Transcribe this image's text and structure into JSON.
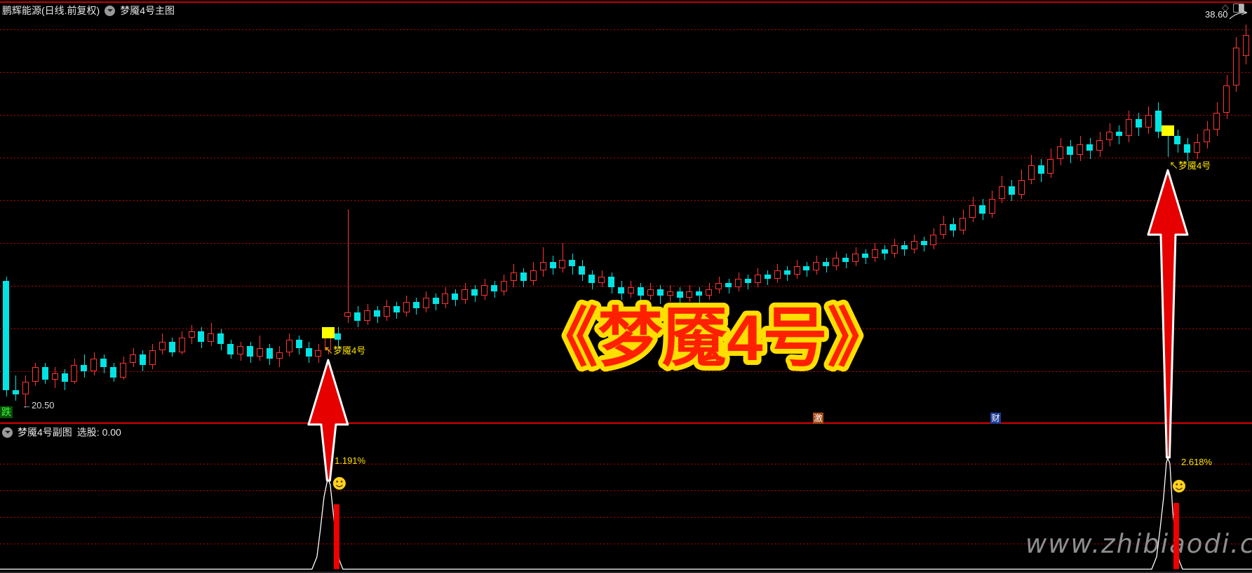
{
  "header": {
    "stock_title": "鹏辉能源(日线.前复权)",
    "main_indicator": "梦魇4号主图",
    "diamond_icon": "◇",
    "price_high_label": "38.60"
  },
  "main_chart": {
    "fall_tag": "跌",
    "low_label": "←20.50",
    "signal_text": "↖梦魇4号",
    "big_title": "《梦魇4号》",
    "news_tags": [
      {
        "text": "激",
        "bg": "#a84a16"
      },
      {
        "text": "财",
        "bg": "#1e3c96"
      }
    ]
  },
  "sub_chart": {
    "indicator_name": "梦魇4号副图",
    "field_label": "选股: 0.00",
    "signal_pcts": [
      "1.191%",
      "2.618%"
    ]
  },
  "watermark": "www.zhibiaodi.com",
  "colors": {
    "up_candle": "#ff3434",
    "down_candle": "#00e4e4",
    "grid": "#bd0000",
    "signal_yellow": "#ffff00",
    "arrow_fill": "#e60000",
    "arrow_stroke": "#ffffff",
    "indicator_line": "#ffffff",
    "histogram_bar": "#f00000",
    "smiley": "#ffd21e",
    "title_fill": "#ff2000",
    "title_stroke": "#ffdf00"
  },
  "chart_data": {
    "type": "candlestick",
    "title": "《梦魇4号》",
    "symbol": "鹏辉能源",
    "period": "日线 前复权",
    "y_axis_visible_labels": [
      "38.60",
      "20.50"
    ],
    "price_range": [
      20.5,
      38.6
    ],
    "grid": "dotted-red-horizontal",
    "candles_format": [
      "open",
      "close",
      "low",
      "high"
    ],
    "candles": [
      [
        26.4,
        21.2,
        20.9,
        26.6
      ],
      [
        21.2,
        21.0,
        20.7,
        21.9
      ],
      [
        21.0,
        21.6,
        20.5,
        21.9
      ],
      [
        21.6,
        22.3,
        21.4,
        22.5
      ],
      [
        22.3,
        21.7,
        21.5,
        22.5
      ],
      [
        21.7,
        22.0,
        21.3,
        22.3
      ],
      [
        22.0,
        21.6,
        21.2,
        22.2
      ],
      [
        21.6,
        22.4,
        21.5,
        22.7
      ],
      [
        22.4,
        22.1,
        21.8,
        22.9
      ],
      [
        22.1,
        22.7,
        21.9,
        23.0
      ],
      [
        22.7,
        22.3,
        22.0,
        22.9
      ],
      [
        22.3,
        21.8,
        21.6,
        22.5
      ],
      [
        21.8,
        22.5,
        21.7,
        22.8
      ],
      [
        22.5,
        22.9,
        22.3,
        23.2
      ],
      [
        22.9,
        22.4,
        22.1,
        23.1
      ],
      [
        22.4,
        23.1,
        22.2,
        23.4
      ],
      [
        23.1,
        23.5,
        22.9,
        23.9
      ],
      [
        23.5,
        23.0,
        22.8,
        23.7
      ],
      [
        23.0,
        23.7,
        22.9,
        24.0
      ],
      [
        23.7,
        24.0,
        23.4,
        24.3
      ],
      [
        24.0,
        23.5,
        23.2,
        24.2
      ],
      [
        23.5,
        23.9,
        23.3,
        24.4
      ],
      [
        23.9,
        23.4,
        23.1,
        24.1
      ],
      [
        23.4,
        22.9,
        22.7,
        23.6
      ],
      [
        22.9,
        23.3,
        22.6,
        23.5
      ],
      [
        23.3,
        22.8,
        22.5,
        23.5
      ],
      [
        22.8,
        23.2,
        22.6,
        23.8
      ],
      [
        23.2,
        22.7,
        22.4,
        23.4
      ],
      [
        22.7,
        23.0,
        22.3,
        23.3
      ],
      [
        23.0,
        23.6,
        22.8,
        23.9
      ],
      [
        23.6,
        23.2,
        22.9,
        23.8
      ],
      [
        23.2,
        22.8,
        22.5,
        23.5
      ],
      [
        22.8,
        23.1,
        22.5,
        23.4
      ],
      [
        23.1,
        23.9,
        22.9,
        24.1
      ],
      [
        23.9,
        23.6,
        23.2,
        24.2
      ],
      [
        24.7,
        24.9,
        24.4,
        29.8
      ],
      [
        24.9,
        24.5,
        24.2,
        25.2
      ],
      [
        24.5,
        25.0,
        24.3,
        25.3
      ],
      [
        25.0,
        24.7,
        24.4,
        25.2
      ],
      [
        24.7,
        25.2,
        24.5,
        25.5
      ],
      [
        25.2,
        24.9,
        24.6,
        25.4
      ],
      [
        24.9,
        25.4,
        24.7,
        25.7
      ],
      [
        25.4,
        25.1,
        24.8,
        25.6
      ],
      [
        25.1,
        25.6,
        24.9,
        25.9
      ],
      [
        25.6,
        25.3,
        25.0,
        25.8
      ],
      [
        25.3,
        25.8,
        25.1,
        26.1
      ],
      [
        25.8,
        25.5,
        25.2,
        26.0
      ],
      [
        25.5,
        26.0,
        25.3,
        26.3
      ],
      [
        26.0,
        25.7,
        25.4,
        26.2
      ],
      [
        25.7,
        26.2,
        25.5,
        26.5
      ],
      [
        26.2,
        25.9,
        25.6,
        26.4
      ],
      [
        25.9,
        26.4,
        25.7,
        26.7
      ],
      [
        26.4,
        26.8,
        26.1,
        27.2
      ],
      [
        26.8,
        26.4,
        26.1,
        27.0
      ],
      [
        26.4,
        26.9,
        26.2,
        27.3
      ],
      [
        26.9,
        27.3,
        26.6,
        28.0
      ],
      [
        27.3,
        27.0,
        26.7,
        27.6
      ],
      [
        27.0,
        27.4,
        26.8,
        28.2
      ],
      [
        27.4,
        27.1,
        26.7,
        27.7
      ],
      [
        27.1,
        26.7,
        26.4,
        27.4
      ],
      [
        26.7,
        26.3,
        26.0,
        26.9
      ],
      [
        26.3,
        26.6,
        26.1,
        26.9
      ],
      [
        26.6,
        26.1,
        25.8,
        26.8
      ],
      [
        26.1,
        25.8,
        25.5,
        26.4
      ],
      [
        25.8,
        26.1,
        25.6,
        26.4
      ],
      [
        26.1,
        25.7,
        25.4,
        26.3
      ],
      [
        25.7,
        26.0,
        25.5,
        26.3
      ],
      [
        26.0,
        25.7,
        25.3,
        26.2
      ],
      [
        25.7,
        25.9,
        25.4,
        26.2
      ],
      [
        25.9,
        25.6,
        25.2,
        26.1
      ],
      [
        25.6,
        25.9,
        25.4,
        26.2
      ],
      [
        25.9,
        25.7,
        25.3,
        26.1
      ],
      [
        25.7,
        26.0,
        25.5,
        26.3
      ],
      [
        26.0,
        26.3,
        25.8,
        26.6
      ],
      [
        26.3,
        26.1,
        25.8,
        26.5
      ],
      [
        26.1,
        26.5,
        25.9,
        26.8
      ],
      [
        26.5,
        26.3,
        26.0,
        26.7
      ],
      [
        26.3,
        26.7,
        26.1,
        27.0
      ],
      [
        26.7,
        26.5,
        26.2,
        26.9
      ],
      [
        26.5,
        26.9,
        26.3,
        27.2
      ],
      [
        26.9,
        26.7,
        26.4,
        27.1
      ],
      [
        26.7,
        27.1,
        26.5,
        27.4
      ],
      [
        27.1,
        26.9,
        26.6,
        27.3
      ],
      [
        26.9,
        27.3,
        26.7,
        27.6
      ],
      [
        27.3,
        27.1,
        26.8,
        27.5
      ],
      [
        27.1,
        27.5,
        26.9,
        27.8
      ],
      [
        27.5,
        27.3,
        27.0,
        27.7
      ],
      [
        27.3,
        27.7,
        27.1,
        28.0
      ],
      [
        27.7,
        27.5,
        27.2,
        27.9
      ],
      [
        27.5,
        27.9,
        27.3,
        28.2
      ],
      [
        27.9,
        27.7,
        27.4,
        28.1
      ],
      [
        27.7,
        28.1,
        27.5,
        28.4
      ],
      [
        28.1,
        27.9,
        27.6,
        28.3
      ],
      [
        27.9,
        28.3,
        27.7,
        28.6
      ],
      [
        28.3,
        28.1,
        27.8,
        28.5
      ],
      [
        28.1,
        28.6,
        27.9,
        28.9
      ],
      [
        28.6,
        29.1,
        28.4,
        29.5
      ],
      [
        29.1,
        28.8,
        28.5,
        29.4
      ],
      [
        28.8,
        29.4,
        28.6,
        29.8
      ],
      [
        29.4,
        30.0,
        29.2,
        30.4
      ],
      [
        30.0,
        29.6,
        29.3,
        30.3
      ],
      [
        29.6,
        30.3,
        29.4,
        30.7
      ],
      [
        30.3,
        30.9,
        30.1,
        31.4
      ],
      [
        30.9,
        30.5,
        30.2,
        31.2
      ],
      [
        30.5,
        31.2,
        30.3,
        31.7
      ],
      [
        31.2,
        31.9,
        31.0,
        32.4
      ],
      [
        31.9,
        31.5,
        31.1,
        32.2
      ],
      [
        31.5,
        32.2,
        31.3,
        32.7
      ],
      [
        32.2,
        32.8,
        31.9,
        33.2
      ],
      [
        32.8,
        32.4,
        32.0,
        33.1
      ],
      [
        32.4,
        32.9,
        32.1,
        33.3
      ],
      [
        32.9,
        32.6,
        32.2,
        33.2
      ],
      [
        32.6,
        33.1,
        32.3,
        33.5
      ],
      [
        33.1,
        33.5,
        32.8,
        33.9
      ],
      [
        33.5,
        33.3,
        32.9,
        33.8
      ],
      [
        33.3,
        34.1,
        33.0,
        34.5
      ],
      [
        34.1,
        33.7,
        33.3,
        34.4
      ],
      [
        33.7,
        34.3,
        33.4,
        34.7
      ],
      [
        34.5,
        33.5,
        33.2,
        34.9
      ],
      [
        33.5,
        33.3,
        32.3,
        33.8
      ],
      [
        33.3,
        32.9,
        32.5,
        33.6
      ],
      [
        32.9,
        32.5,
        32.1,
        33.2
      ],
      [
        32.5,
        33.0,
        32.2,
        33.4
      ],
      [
        33.0,
        33.6,
        32.7,
        34.0
      ],
      [
        33.6,
        34.4,
        33.3,
        34.9
      ],
      [
        34.4,
        35.7,
        34.1,
        36.2
      ],
      [
        35.7,
        37.5,
        35.4,
        38.0
      ],
      [
        37.1,
        38.1,
        36.7,
        38.6
      ]
    ],
    "signals": [
      {
        "index": 33,
        "marker_price": 23.9,
        "label": "梦魇4号",
        "sub_value_label": "1.191%"
      },
      {
        "index": 119,
        "marker_price": 33.5,
        "label": "梦魇4号",
        "sub_value_label": "2.618%"
      }
    ],
    "sub_indicator": {
      "name": "梦魇4号副图",
      "selector_field": "选股",
      "selector_value": "0.00",
      "baseline_value": 0,
      "spikes": [
        {
          "index": 33,
          "peak_label": "1.191%"
        },
        {
          "index": 119,
          "peak_label": "2.618%"
        }
      ]
    }
  }
}
